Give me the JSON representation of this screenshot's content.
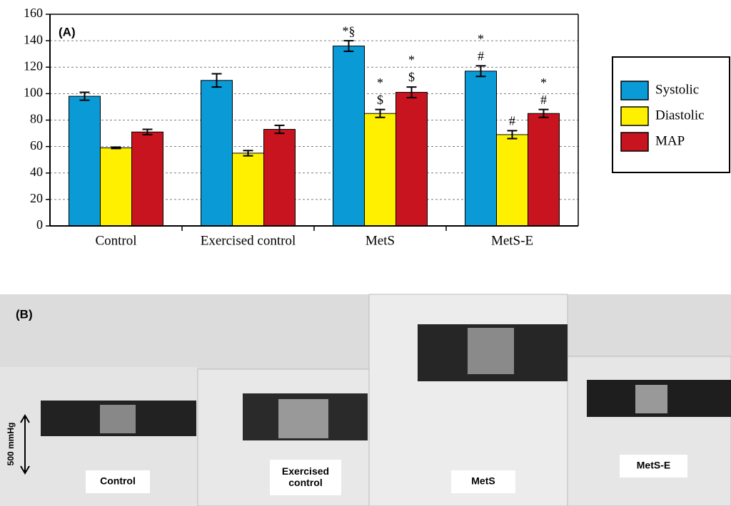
{
  "chart_data": {
    "type": "bar",
    "panel_label": "(A)",
    "categories": [
      "Control",
      "Exercised control",
      "MetS",
      "MetS-E"
    ],
    "series": [
      {
        "name": "Systolic",
        "color": "#0a9ad6",
        "values": [
          98,
          110,
          136,
          117
        ],
        "errors": [
          3,
          5,
          4,
          4
        ],
        "markers": [
          null,
          null,
          [
            "*§"
          ],
          [
            "*",
            "#"
          ]
        ]
      },
      {
        "name": "Diastolic",
        "color": "#fff000",
        "values": [
          59,
          55,
          85,
          69
        ],
        "errors": [
          0.5,
          2,
          3,
          3
        ],
        "markers": [
          null,
          null,
          [
            "*",
            "$"
          ],
          [
            "#"
          ]
        ]
      },
      {
        "name": "MAP",
        "color": "#c8141e",
        "values": [
          71,
          73,
          101,
          85
        ],
        "errors": [
          2,
          3,
          4,
          3
        ],
        "markers": [
          null,
          null,
          [
            "*",
            "$"
          ],
          [
            "*",
            "#"
          ]
        ]
      }
    ],
    "ylim": [
      0,
      160
    ],
    "yticks": [
      0,
      20,
      40,
      60,
      80,
      100,
      120,
      140,
      160
    ],
    "grid": true,
    "legend": "right"
  },
  "panel_b": {
    "panel_label": "(B)",
    "scale_label": "500 mmHg",
    "trace_labels": [
      "Control",
      "Exercised control",
      "MetS",
      "MetS-E"
    ]
  }
}
